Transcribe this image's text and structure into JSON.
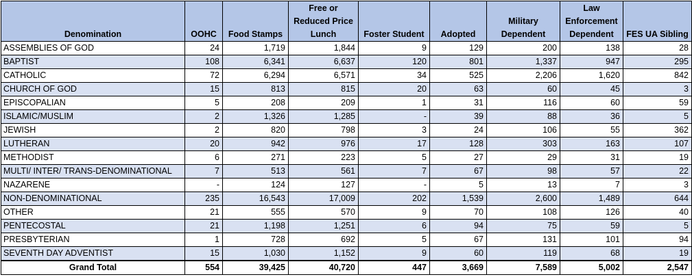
{
  "columns": [
    "Denomination",
    "OOHC",
    "Food Stamps",
    "Free or Reduced Price Lunch",
    "Foster Student",
    "Adopted",
    "Military Dependent",
    "Law Enforcement Dependent",
    "FES UA Sibling"
  ],
  "rows": [
    [
      "ASSEMBLIES OF GOD",
      "24",
      "1,719",
      "1,844",
      "9",
      "129",
      "200",
      "138",
      "28"
    ],
    [
      "BAPTIST",
      "108",
      "6,341",
      "6,637",
      "120",
      "801",
      "1,337",
      "947",
      "295"
    ],
    [
      "CATHOLIC",
      "72",
      "6,294",
      "6,571",
      "34",
      "525",
      "2,206",
      "1,620",
      "842"
    ],
    [
      "CHURCH OF GOD",
      "15",
      "813",
      "815",
      "20",
      "63",
      "60",
      "45",
      "3"
    ],
    [
      "EPISCOPALIAN",
      "5",
      "208",
      "209",
      "1",
      "31",
      "116",
      "60",
      "59"
    ],
    [
      "ISLAMIC/MUSLIM",
      "2",
      "1,326",
      "1,285",
      "-",
      "39",
      "88",
      "36",
      "5"
    ],
    [
      "JEWISH",
      "2",
      "820",
      "798",
      "3",
      "24",
      "106",
      "55",
      "362"
    ],
    [
      "LUTHERAN",
      "20",
      "942",
      "976",
      "17",
      "128",
      "303",
      "163",
      "107"
    ],
    [
      "METHODIST",
      "6",
      "271",
      "223",
      "5",
      "27",
      "29",
      "31",
      "19"
    ],
    [
      "MULTI/ INTER/ TRANS-DENOMINATIONAL",
      "7",
      "513",
      "561",
      "7",
      "67",
      "98",
      "57",
      "22"
    ],
    [
      "NAZARENE",
      "-",
      "124",
      "127",
      "-",
      "5",
      "13",
      "7",
      "3"
    ],
    [
      "NON-DENOMINATIONAL",
      "235",
      "16,543",
      "17,009",
      "202",
      "1,539",
      "2,600",
      "1,489",
      "644"
    ],
    [
      "OTHER",
      "21",
      "555",
      "570",
      "9",
      "70",
      "108",
      "126",
      "40"
    ],
    [
      "PENTECOSTAL",
      "21",
      "1,198",
      "1,251",
      "6",
      "94",
      "75",
      "59",
      "5"
    ],
    [
      "PRESBYTERIAN",
      "1",
      "728",
      "692",
      "5",
      "67",
      "131",
      "101",
      "94"
    ],
    [
      "SEVENTH DAY ADVENTIST",
      "15",
      "1,030",
      "1,152",
      "9",
      "60",
      "119",
      "68",
      "19"
    ]
  ],
  "total": [
    "Grand Total",
    "554",
    "39,425",
    "40,720",
    "447",
    "3,669",
    "7,589",
    "5,002",
    "2,547"
  ],
  "colors": {
    "header_bg": "#b4c6e7",
    "band_bg": "#d9e1f2",
    "row_bg": "#ffffff"
  }
}
